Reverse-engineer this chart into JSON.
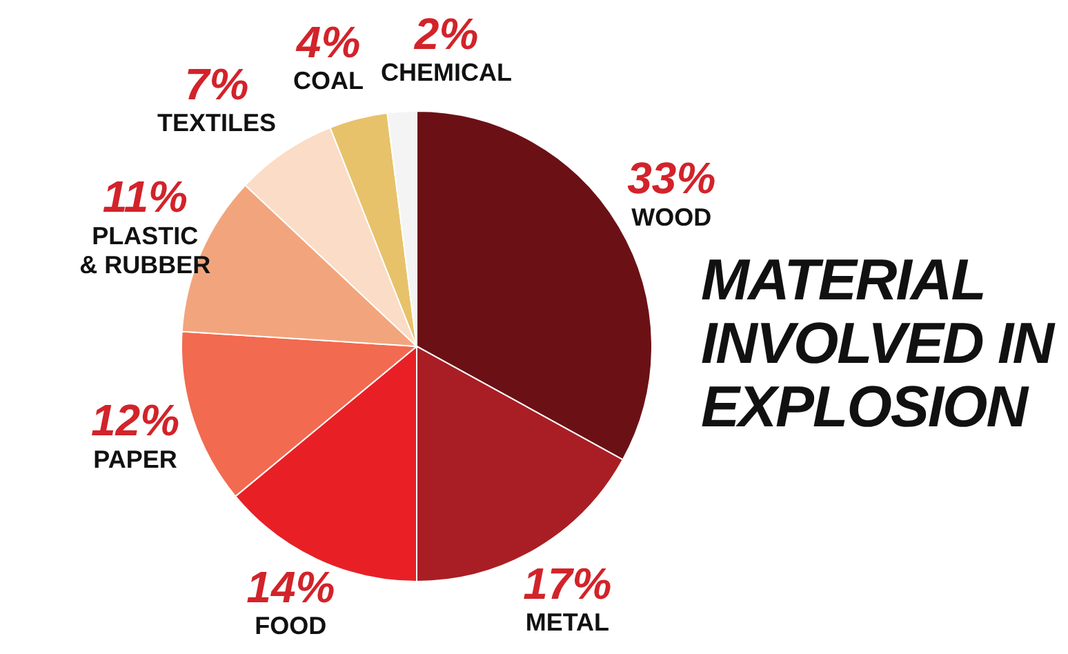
{
  "chart_data": {
    "type": "pie",
    "title": "MATERIAL INVOLVED IN EXPLOSION",
    "categories": [
      "WOOD",
      "METAL",
      "FOOD",
      "PAPER",
      "PLASTIC & RUBBER",
      "TEXTILES",
      "COAL",
      "CHEMICAL"
    ],
    "values": [
      33,
      17,
      14,
      12,
      11,
      7,
      4,
      2
    ],
    "value_labels": [
      "33%",
      "17%",
      "14%",
      "12%",
      "11%",
      "7%",
      "4%",
      "2%"
    ],
    "colors": [
      "#6b1116",
      "#a91e24",
      "#e82026",
      "#f26a50",
      "#f2a57c",
      "#fbdcc6",
      "#e7c26a",
      "#f4f4f4"
    ],
    "legend": false
  }
}
